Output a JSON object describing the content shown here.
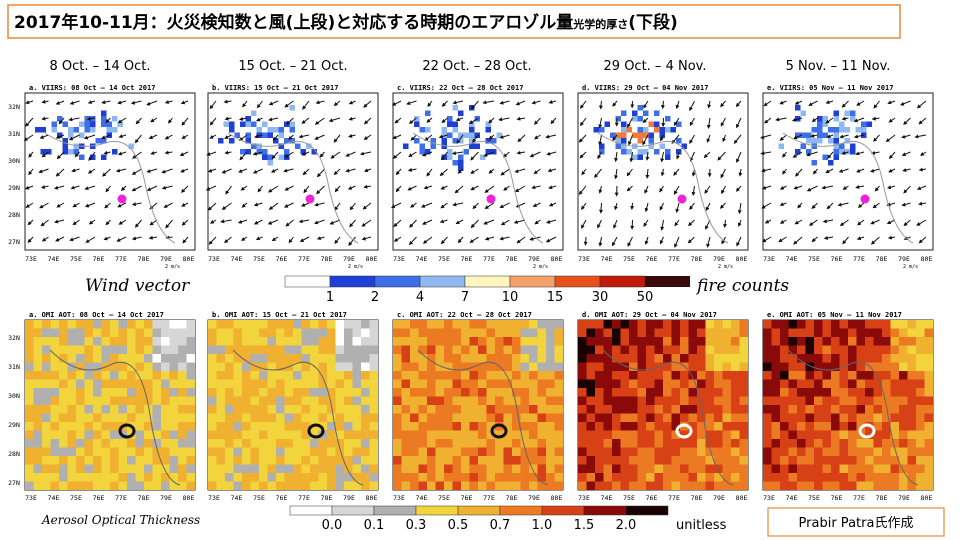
{
  "title": {
    "main": "2017年10-11月：火災検知数と風(上段)と対応する時期のエアロゾル量",
    "small": "光学的厚さ",
    "end": "(下段)"
  },
  "periods": [
    "8 Oct. – 14 Oct.",
    "15 Oct. – 21 Oct.",
    "22 Oct. – 28 Oct.",
    "29 Oct. – 4 Nov.",
    "5 Nov. – 11 Nov."
  ],
  "fire_panels": [
    "a. VIIRS: 08 Oct – 14 Oct 2017",
    "b. VIIRS: 15 Oct – 21 Oct 2017",
    "c. VIIRS: 22 Oct – 28 Oct 2017",
    "d. VIIRS: 29 Oct – 04 Nov 2017",
    "e. VIIRS: 05 Nov – 11 Nov 2017"
  ],
  "aot_panels": [
    "a. OMI AOT: 08 Oct – 14 Oct 2017",
    "b. OMI AOT: 15 Oct – 21 Oct 2017",
    "c. OMI AOT: 22 Oct – 28 Oct 2017",
    "d. OMI AOT: 29 Oct – 04 Nov 2017",
    "e. OMI AOT: 05 Nov – 11 Nov 2017"
  ],
  "lat_labels": [
    "32N",
    "31N",
    "30N",
    "29N",
    "28N",
    "27N"
  ],
  "lon_labels": [
    "73E",
    "74E",
    "75E",
    "76E",
    "77E",
    "78E",
    "79E",
    "80E"
  ],
  "wind_unit": "2 m/s",
  "fire_legend": {
    "left": "Wind vector",
    "right": "fire counts",
    "labels": [
      "1",
      "2",
      "4",
      "7",
      "10",
      "15",
      "30",
      "50"
    ]
  },
  "aot_legend": {
    "title": "Aerosol Optical Thickness",
    "labels": [
      "0.0",
      "0.1",
      "0.3",
      "0.5",
      "0.7",
      "1.0",
      "1.5",
      "2.0"
    ],
    "unit": "unitless"
  },
  "credit": "Prabir Patra氏作成"
}
